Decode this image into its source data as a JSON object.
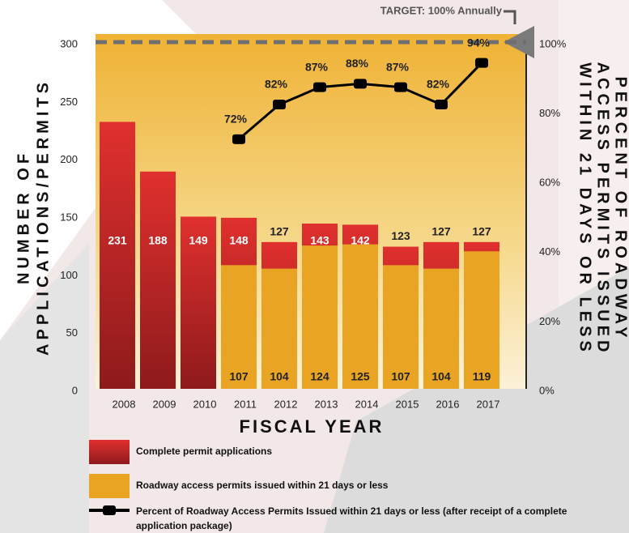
{
  "chart_data": {
    "type": "bar",
    "categories": [
      "2008",
      "2009",
      "2010",
      "2011",
      "2012",
      "2013",
      "2014",
      "2015",
      "2016",
      "2017"
    ],
    "series": [
      {
        "name": "Complete permit applications",
        "type": "bar",
        "color": "#d42a2a",
        "values": [
          231,
          188,
          149,
          148,
          127,
          143,
          142,
          123,
          127,
          127
        ]
      },
      {
        "name": "Roadway access permits issued within 21 days or less",
        "type": "bar",
        "color": "#e9a424",
        "values": [
          null,
          null,
          null,
          107,
          104,
          124,
          125,
          107,
          104,
          119
        ]
      },
      {
        "name": "Percent of Roadway Access Permits Issued within 21 days or less (after receipt of a complete application package)",
        "type": "line",
        "axis": "y2",
        "color": "#000000",
        "values": [
          null,
          null,
          null,
          72,
          82,
          87,
          88,
          87,
          82,
          94
        ],
        "value_labels": [
          null,
          null,
          null,
          "72%",
          "82%",
          "87%",
          "88%",
          "87%",
          "82%",
          "94%"
        ]
      }
    ],
    "x_label": "FISCAL YEAR",
    "y_label": [
      "NUMBER OF",
      "APPLICATIONS/PERMITS"
    ],
    "y2_label": [
      "PERCENT OF ROADWAY",
      "ACCESS PERMITS ISSUED",
      "WITHIN 21 DAYS OR LESS"
    ],
    "ylim": [
      0,
      300
    ],
    "yticks": [
      0,
      50,
      100,
      150,
      200,
      250,
      300
    ],
    "y2lim": [
      0,
      100
    ],
    "y2ticks": [
      {
        "value": 0,
        "label": "0%"
      },
      {
        "value": 20,
        "label": "20%"
      },
      {
        "value": 40,
        "label": "40%"
      },
      {
        "value": 60,
        "label": "60%"
      },
      {
        "value": 80,
        "label": "80%"
      },
      {
        "value": 100,
        "label": "100%"
      }
    ],
    "target_line": {
      "value": 100,
      "axis": "y2",
      "label": "TARGET: 100% Annually"
    }
  }
}
